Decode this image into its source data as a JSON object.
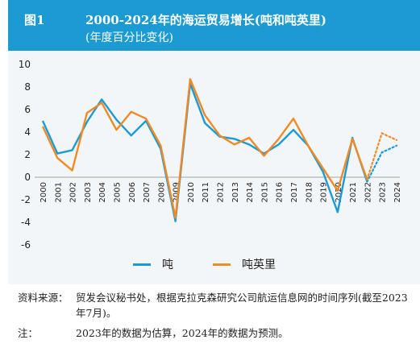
{
  "header": {
    "figure_label": "图1",
    "title": "2000-2024年的海运贸易增长(吨和吨英里)",
    "subtitle": "(年度百分比变化)"
  },
  "legend": {
    "tons_label": "吨",
    "ton_miles_label": "吨英里"
  },
  "notes": {
    "source_key": "资料来源：",
    "source_text": "贸发会议秘书处，根据克拉克森研究公司航运信息网的时间序列(截至2023年7月)。",
    "note_key": "注：",
    "note_text": "2023年的数据为估算，2024年的数据为预测。"
  },
  "colors": {
    "header_bg": "#1b9bd2",
    "tons": "#1a9bd7",
    "ton_miles": "#f08a24",
    "chart_bg": "#f3f6f8"
  },
  "chart_data": {
    "type": "line",
    "x": [
      "2000",
      "2001",
      "2002",
      "2003",
      "2004",
      "2005",
      "2006",
      "2007",
      "2008",
      "2009",
      "2010",
      "2011",
      "2012",
      "2013",
      "2014",
      "2015",
      "2016",
      "2017",
      "2018",
      "2019",
      "2020",
      "2021",
      "2022",
      "2023",
      "2024"
    ],
    "y_ticks": [
      "10",
      "8",
      "6",
      "4",
      "2",
      "0",
      "-2",
      "-4",
      "-6"
    ],
    "ylim": [
      -6,
      10
    ],
    "grid": false,
    "estimated_from": "2022",
    "series": [
      {
        "name": "吨",
        "color": "#1a9bd7",
        "values": [
          5.0,
          2.1,
          2.4,
          4.9,
          6.9,
          5.1,
          3.7,
          5.0,
          2.5,
          -3.9,
          8.3,
          4.8,
          3.6,
          3.4,
          2.9,
          2.1,
          2.9,
          4.2,
          2.8,
          0.5,
          -3.1,
          3.5,
          -0.4,
          2.2,
          2.8
        ]
      },
      {
        "name": "吨英里",
        "color": "#f08a24",
        "values": [
          4.5,
          1.7,
          0.6,
          5.7,
          6.6,
          4.2,
          5.8,
          5.2,
          2.8,
          -3.6,
          8.7,
          5.5,
          3.7,
          2.9,
          3.5,
          1.9,
          3.4,
          5.2,
          2.8,
          0.8,
          -1.2,
          3.4,
          -0.2,
          3.9,
          3.3
        ]
      }
    ]
  }
}
